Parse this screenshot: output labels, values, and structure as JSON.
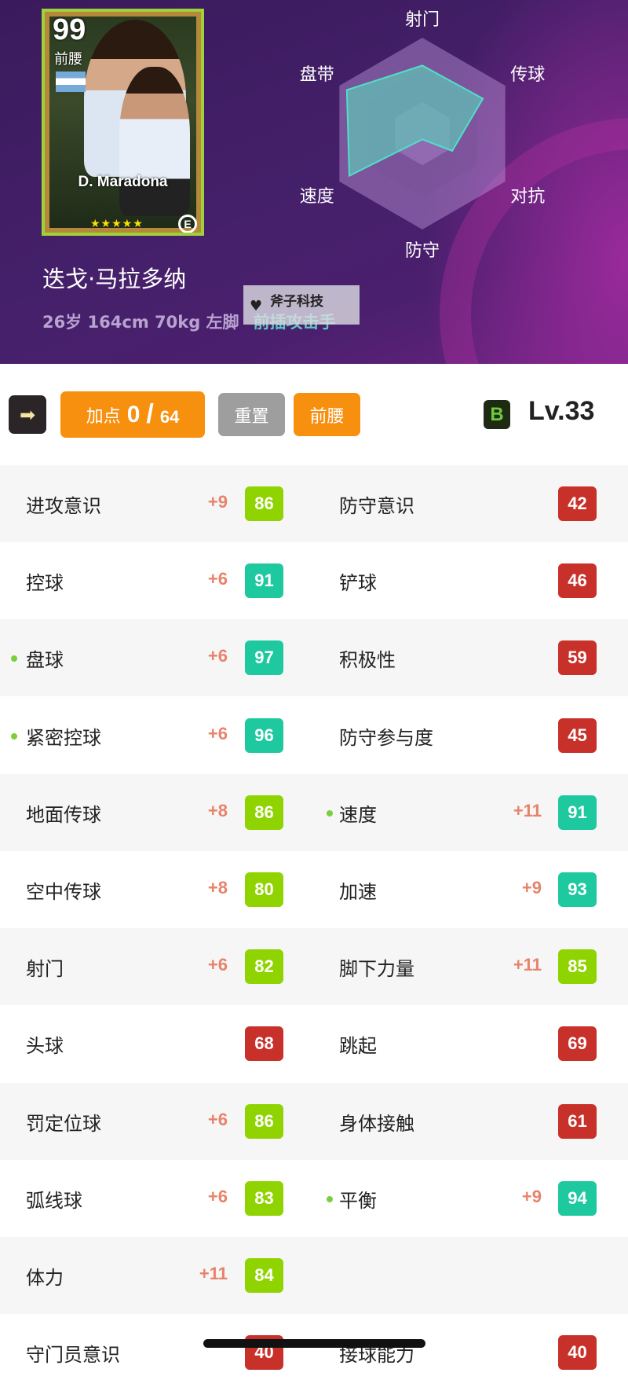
{
  "card": {
    "rating": "99",
    "position": "前腰",
    "name": "D. Maradona",
    "stars": "★★★★★",
    "logo": "E"
  },
  "radar": {
    "labels": [
      "射门",
      "传球",
      "对抗",
      "防守",
      "速度",
      "盘带"
    ],
    "values": [
      0.71,
      0.73,
      0.36,
      0.06,
      0.88,
      0.91
    ],
    "fill": "#5fc7b8"
  },
  "player": {
    "name": "迭戈·马拉多纳",
    "info": "26岁 164cm 70kg 左脚",
    "role": "前插攻击手"
  },
  "watermark": {
    "text": "斧子科技"
  },
  "toolbar": {
    "arrow": "➡",
    "points_label": "加点",
    "points_used": "0",
    "slash": "/",
    "points_max": "64",
    "reset": "重置",
    "position": "前腰",
    "grade": "B",
    "level": "Lv.33"
  },
  "colors": {
    "high": "#1fc9a0",
    "mid": "#8fd400",
    "low": "#c8302a",
    "bonus": "#e8826a"
  },
  "stats": [
    {
      "l": {
        "name": "进攻意识",
        "bonus": "+9",
        "value": 86
      },
      "r": {
        "name": "防守意识",
        "bonus": "",
        "value": 42
      }
    },
    {
      "l": {
        "name": "控球",
        "bonus": "+6",
        "value": 91
      },
      "r": {
        "name": "铲球",
        "bonus": "",
        "value": 46
      }
    },
    {
      "l": {
        "name": "盘球",
        "bonus": "+6",
        "value": 97,
        "dot": true
      },
      "r": {
        "name": "积极性",
        "bonus": "",
        "value": 59
      }
    },
    {
      "l": {
        "name": "紧密控球",
        "bonus": "+6",
        "value": 96,
        "dot": true
      },
      "r": {
        "name": "防守参与度",
        "bonus": "",
        "value": 45
      }
    },
    {
      "l": {
        "name": "地面传球",
        "bonus": "+8",
        "value": 86
      },
      "r": {
        "name": "速度",
        "bonus": "+11",
        "value": 91,
        "dot": true
      }
    },
    {
      "l": {
        "name": "空中传球",
        "bonus": "+8",
        "value": 80
      },
      "r": {
        "name": "加速",
        "bonus": "+9",
        "value": 93
      }
    },
    {
      "l": {
        "name": "射门",
        "bonus": "+6",
        "value": 82
      },
      "r": {
        "name": "脚下力量",
        "bonus": "+11",
        "value": 85
      }
    },
    {
      "l": {
        "name": "头球",
        "bonus": "",
        "value": 68
      },
      "r": {
        "name": "跳起",
        "bonus": "",
        "value": 69
      }
    },
    {
      "l": {
        "name": "罚定位球",
        "bonus": "+6",
        "value": 86
      },
      "r": {
        "name": "身体接触",
        "bonus": "",
        "value": 61
      }
    },
    {
      "l": {
        "name": "弧线球",
        "bonus": "+6",
        "value": 83
      },
      "r": {
        "name": "平衡",
        "bonus": "+9",
        "value": 94,
        "dot": true
      }
    },
    {
      "l": {
        "name": "体力",
        "bonus": "+11",
        "value": 84
      },
      "r": null
    },
    {
      "l": {
        "name": "守门员意识",
        "bonus": "",
        "value": 40
      },
      "r": {
        "name": "接球能力",
        "bonus": "",
        "value": 40
      }
    }
  ]
}
